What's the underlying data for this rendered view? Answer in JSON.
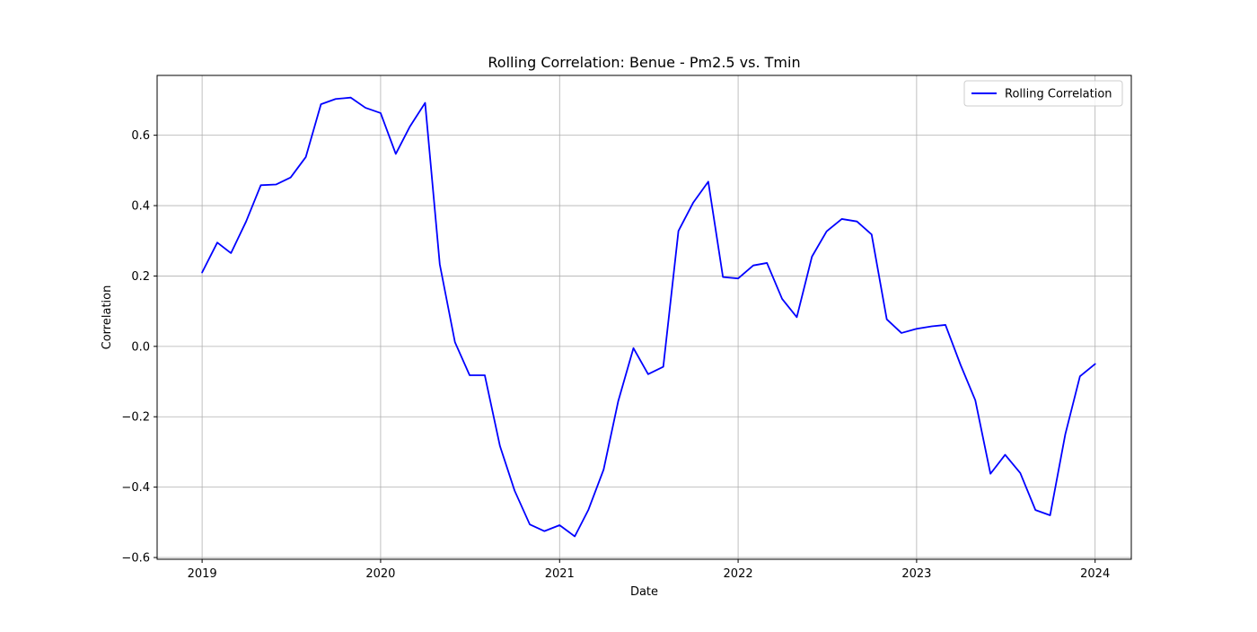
{
  "chart_data": {
    "type": "line",
    "title": "Rolling Correlation: Benue - Pm2.5 vs. Tmin",
    "xlabel": "Date",
    "ylabel": "Correlation",
    "xlim": [
      "2018-10-01",
      "2024-03-15"
    ],
    "ylim": [
      -0.605,
      0.77
    ],
    "x_ticks": [
      "2019",
      "2020",
      "2021",
      "2022",
      "2023",
      "2024"
    ],
    "y_ticks": [
      -0.6,
      -0.4,
      -0.2,
      0.0,
      0.2,
      0.4,
      0.6
    ],
    "y_tick_labels": [
      "−0.6",
      "−0.4",
      "−0.2",
      "0.0",
      "0.2",
      "0.4",
      "0.6"
    ],
    "grid": true,
    "legend_position": "top-right",
    "line_color": "#0000ff",
    "series": [
      {
        "name": "Rolling Correlation",
        "x": [
          "2019-01",
          "2019-02",
          "2019-03",
          "2019-04",
          "2019-05",
          "2019-06",
          "2019-07",
          "2019-08",
          "2019-09",
          "2019-10",
          "2019-11",
          "2019-12",
          "2020-01",
          "2020-02",
          "2020-03",
          "2020-04",
          "2020-05",
          "2020-06",
          "2020-07",
          "2020-08",
          "2020-09",
          "2020-10",
          "2020-11",
          "2020-12",
          "2021-01",
          "2021-02",
          "2021-03",
          "2021-04",
          "2021-05",
          "2021-06",
          "2021-07",
          "2021-08",
          "2021-09",
          "2021-10",
          "2021-11",
          "2021-12",
          "2022-01",
          "2022-02",
          "2022-03",
          "2022-04",
          "2022-05",
          "2022-06",
          "2022-07",
          "2022-08",
          "2022-09",
          "2022-10",
          "2022-11",
          "2022-12",
          "2023-01",
          "2023-02",
          "2023-03",
          "2023-04",
          "2023-05",
          "2023-06",
          "2023-07",
          "2023-08",
          "2023-09",
          "2023-10",
          "2023-11",
          "2023-12",
          "2024-01"
        ],
        "y": [
          0.21,
          0.295,
          0.265,
          0.355,
          0.458,
          0.46,
          0.48,
          0.538,
          0.688,
          0.703,
          0.707,
          0.678,
          0.663,
          0.547,
          0.625,
          0.692,
          0.233,
          0.012,
          -0.082,
          -0.082,
          -0.283,
          -0.41,
          -0.506,
          -0.525,
          -0.508,
          -0.54,
          -0.464,
          -0.35,
          -0.155,
          -0.005,
          -0.079,
          -0.058,
          0.328,
          0.408,
          0.468,
          0.197,
          0.193,
          0.23,
          0.237,
          0.135,
          0.083,
          0.255,
          0.327,
          0.362,
          0.355,
          0.318,
          0.077,
          0.038,
          0.05,
          0.057,
          0.061,
          -0.053,
          -0.153,
          -0.362,
          -0.308,
          -0.36,
          -0.465,
          -0.48,
          -0.25,
          -0.085,
          -0.05
        ]
      }
    ]
  }
}
